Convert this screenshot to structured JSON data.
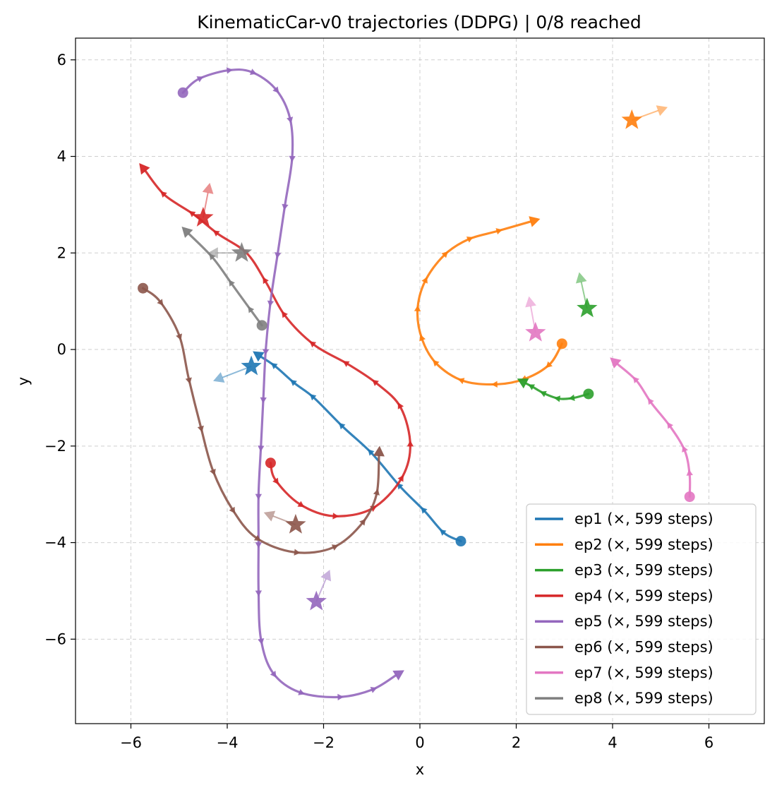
{
  "chart_data": {
    "type": "line",
    "title": "KinematicCar-v0 trajectories (DDPG) | 0/8 reached",
    "xlabel": "x",
    "ylabel": "y",
    "xlim": [
      -7.15,
      7.15
    ],
    "ylim": [
      -7.75,
      6.45
    ],
    "xticks": [
      -6,
      -4,
      -2,
      0,
      2,
      4,
      6
    ],
    "yticks": [
      -6,
      -4,
      -2,
      0,
      2,
      4,
      6
    ],
    "xtick_labels": [
      "−6",
      "−4",
      "−2",
      "0",
      "2",
      "4",
      "6"
    ],
    "ytick_labels": [
      "−6",
      "−4",
      "−2",
      "0",
      "2",
      "4",
      "6"
    ],
    "grid": true,
    "legend_position": "lower-right",
    "series": [
      {
        "name": "ep1 (×, 599 steps)",
        "color": "#1f77b4",
        "points": [
          [
            0.85,
            -3.97
          ],
          [
            0.5,
            -3.8
          ],
          [
            0.1,
            -3.35
          ],
          [
            -0.4,
            -2.85
          ],
          [
            -1.0,
            -2.15
          ],
          [
            -1.6,
            -1.6
          ],
          [
            -2.2,
            -1.0
          ],
          [
            -2.6,
            -0.7
          ],
          [
            -3.0,
            -0.35
          ],
          [
            -3.3,
            -0.15
          ]
        ],
        "goal": [
          -3.5,
          -0.35
        ],
        "goal_heading": [
          -4.1,
          -0.58
        ]
      },
      {
        "name": "ep2 (×, 599 steps)",
        "color": "#ff7f0e",
        "points": [
          [
            2.95,
            0.12
          ],
          [
            2.7,
            -0.3
          ],
          [
            2.2,
            -0.6
          ],
          [
            1.6,
            -0.72
          ],
          [
            0.9,
            -0.65
          ],
          [
            0.35,
            -0.3
          ],
          [
            0.05,
            0.2
          ],
          [
            -0.05,
            0.8
          ],
          [
            0.1,
            1.4
          ],
          [
            0.5,
            1.95
          ],
          [
            1.0,
            2.28
          ],
          [
            1.6,
            2.45
          ],
          [
            2.3,
            2.65
          ]
        ],
        "goal": [
          4.4,
          4.75
        ],
        "goal_heading": [
          4.95,
          4.95
        ]
      },
      {
        "name": "ep3 (×, 599 steps)",
        "color": "#2ca02c",
        "points": [
          [
            3.5,
            -0.92
          ],
          [
            3.2,
            -1.0
          ],
          [
            2.9,
            -1.02
          ],
          [
            2.6,
            -0.92
          ],
          [
            2.35,
            -0.78
          ],
          [
            2.2,
            -0.7
          ]
        ],
        "goal": [
          3.47,
          0.85
        ],
        "goal_heading": [
          3.35,
          1.4
        ]
      },
      {
        "name": "ep4 (×, 599 steps)",
        "color": "#d62728",
        "points": [
          [
            -3.1,
            -2.35
          ],
          [
            -3.0,
            -2.7
          ],
          [
            -2.5,
            -3.2
          ],
          [
            -1.8,
            -3.45
          ],
          [
            -1.0,
            -3.3
          ],
          [
            -0.4,
            -2.7
          ],
          [
            -0.2,
            -2.0
          ],
          [
            -0.4,
            -1.2
          ],
          [
            -0.9,
            -0.7
          ],
          [
            -1.5,
            -0.3
          ],
          [
            -2.2,
            0.1
          ],
          [
            -2.8,
            0.7
          ],
          [
            -3.2,
            1.4
          ],
          [
            -3.6,
            2.0
          ],
          [
            -4.2,
            2.4
          ],
          [
            -4.7,
            2.8
          ],
          [
            -5.3,
            3.2
          ],
          [
            -5.7,
            3.7
          ]
        ],
        "goal": [
          -4.5,
          2.73
        ],
        "goal_heading": [
          -4.4,
          3.25
        ]
      },
      {
        "name": "ep5 (×, 599 steps)",
        "color": "#9467bd",
        "points": [
          [
            -4.92,
            5.32
          ],
          [
            -4.6,
            5.6
          ],
          [
            -4.0,
            5.78
          ],
          [
            -3.5,
            5.75
          ],
          [
            -3.0,
            5.4
          ],
          [
            -2.7,
            4.8
          ],
          [
            -2.65,
            4.0
          ],
          [
            -2.8,
            3.0
          ],
          [
            -2.95,
            2.0
          ],
          [
            -3.1,
            1.0
          ],
          [
            -3.2,
            0.0
          ],
          [
            -3.25,
            -1.0
          ],
          [
            -3.3,
            -2.0
          ],
          [
            -3.35,
            -3.0
          ],
          [
            -3.35,
            -4.0
          ],
          [
            -3.35,
            -5.0
          ],
          [
            -3.3,
            -6.0
          ],
          [
            -3.05,
            -6.7
          ],
          [
            -2.5,
            -7.1
          ],
          [
            -1.7,
            -7.2
          ],
          [
            -1.0,
            -7.05
          ],
          [
            -0.5,
            -6.75
          ]
        ],
        "goal": [
          -2.15,
          -5.22
        ],
        "goal_heading": [
          -1.95,
          -4.75
        ]
      },
      {
        "name": "ep6 (×, 599 steps)",
        "color": "#8c564b",
        "points": [
          [
            -5.75,
            1.27
          ],
          [
            -5.4,
            1.0
          ],
          [
            -5.0,
            0.3
          ],
          [
            -4.8,
            -0.6
          ],
          [
            -4.55,
            -1.6
          ],
          [
            -4.3,
            -2.5
          ],
          [
            -3.9,
            -3.3
          ],
          [
            -3.4,
            -3.9
          ],
          [
            -2.6,
            -4.2
          ],
          [
            -1.8,
            -4.1
          ],
          [
            -1.2,
            -3.6
          ],
          [
            -0.9,
            -3.0
          ],
          [
            -0.85,
            -2.2
          ]
        ],
        "goal": [
          -2.58,
          -3.63
        ],
        "goal_heading": [
          -3.05,
          -3.45
        ]
      },
      {
        "name": "ep7 (×, 599 steps)",
        "color": "#e377c2",
        "points": [
          [
            5.6,
            -3.05
          ],
          [
            5.6,
            -2.6
          ],
          [
            5.5,
            -2.1
          ],
          [
            5.2,
            -1.6
          ],
          [
            4.8,
            -1.1
          ],
          [
            4.5,
            -0.65
          ],
          [
            4.1,
            -0.3
          ]
        ],
        "goal": [
          2.4,
          0.35
        ],
        "goal_heading": [
          2.3,
          0.9
        ]
      },
      {
        "name": "ep8 (×, 599 steps)",
        "color": "#7f7f7f",
        "points": [
          [
            -3.28,
            0.5
          ],
          [
            -3.5,
            0.8
          ],
          [
            -3.9,
            1.35
          ],
          [
            -4.3,
            1.9
          ],
          [
            -4.8,
            2.4
          ]
        ],
        "goal": [
          -3.7,
          2.0
        ],
        "goal_heading": [
          -4.2,
          2.0
        ]
      }
    ]
  }
}
